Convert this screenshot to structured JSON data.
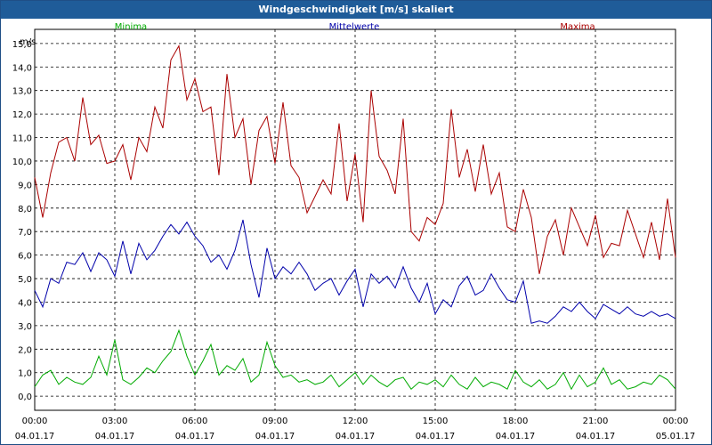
{
  "window": {
    "title": "Windgeschwindigkeit [m/s] skaliert"
  },
  "colors": {
    "minima": "#00aa00",
    "mittelwerte": "#0000aa",
    "maxima": "#aa0000",
    "titlebar": "#1f5c99"
  },
  "chart_data": {
    "type": "line",
    "title": "Windgeschwindigkeit [m/s] skaliert",
    "ylabel": "m/s",
    "xlabel": "",
    "ylim": [
      -0.6,
      15.6
    ],
    "xlim": [
      0,
      24
    ],
    "grid": true,
    "legend_placement": "top",
    "yticks": [
      "0,0",
      "1,0",
      "2,0",
      "3,0",
      "4,0",
      "5,0",
      "6,0",
      "7,0",
      "8,0",
      "9,0",
      "10,0",
      "11,0",
      "12,0",
      "13,0",
      "14,0",
      "15,0"
    ],
    "xticks": [
      {
        "time": "00:00",
        "date": "04.01.17"
      },
      {
        "time": "03:00",
        "date": "04.01.17"
      },
      {
        "time": "06:00",
        "date": "04.01.17"
      },
      {
        "time": "09:00",
        "date": "04.01.17"
      },
      {
        "time": "12:00",
        "date": "04.01.17"
      },
      {
        "time": "15:00",
        "date": "04.01.17"
      },
      {
        "time": "18:00",
        "date": "04.01.17"
      },
      {
        "time": "21:00",
        "date": "04.01.17"
      },
      {
        "time": "00:00",
        "date": "05.01.17"
      }
    ],
    "series": [
      {
        "name": "Minima",
        "x": [
          0,
          0.3,
          0.6,
          0.9,
          1.2,
          1.5,
          1.8,
          2.1,
          2.4,
          2.7,
          3.0,
          3.3,
          3.6,
          3.9,
          4.2,
          4.5,
          4.8,
          5.1,
          5.4,
          5.7,
          6.0,
          6.3,
          6.6,
          6.9,
          7.2,
          7.5,
          7.8,
          8.1,
          8.4,
          8.7,
          9.0,
          9.3,
          9.6,
          9.9,
          10.2,
          10.5,
          10.8,
          11.1,
          11.4,
          11.7,
          12.0,
          12.3,
          12.6,
          12.9,
          13.2,
          13.5,
          13.8,
          14.1,
          14.4,
          14.7,
          15.0,
          15.3,
          15.6,
          15.9,
          16.2,
          16.5,
          16.8,
          17.1,
          17.4,
          17.7,
          18.0,
          18.3,
          18.6,
          18.9,
          19.2,
          19.5,
          19.8,
          20.1,
          20.4,
          20.7,
          21.0,
          21.3,
          21.6,
          21.9,
          22.2,
          22.5,
          22.8,
          23.1,
          23.4,
          23.7,
          24.0
        ],
        "values": [
          0.4,
          0.9,
          1.1,
          0.5,
          0.8,
          0.6,
          0.5,
          0.8,
          1.7,
          0.9,
          2.4,
          0.7,
          0.5,
          0.8,
          1.2,
          1.0,
          1.5,
          1.9,
          2.8,
          1.7,
          0.9,
          1.5,
          2.2,
          0.9,
          1.3,
          1.1,
          1.6,
          0.6,
          0.9,
          2.3,
          1.3,
          0.8,
          0.9,
          0.6,
          0.7,
          0.5,
          0.6,
          0.9,
          0.4,
          0.7,
          1.0,
          0.5,
          0.9,
          0.6,
          0.4,
          0.7,
          0.8,
          0.3,
          0.6,
          0.5,
          0.7,
          0.4,
          0.9,
          0.5,
          0.3,
          0.8,
          0.4,
          0.6,
          0.5,
          0.3,
          1.1,
          0.6,
          0.4,
          0.7,
          0.3,
          0.5,
          1.0,
          0.3,
          0.9,
          0.4,
          0.6,
          1.2,
          0.5,
          0.7,
          0.3,
          0.4,
          0.6,
          0.5,
          0.9,
          0.7,
          0.3
        ]
      },
      {
        "name": "Mittelwerte",
        "x": [
          0,
          0.3,
          0.6,
          0.9,
          1.2,
          1.5,
          1.8,
          2.1,
          2.4,
          2.7,
          3.0,
          3.3,
          3.6,
          3.9,
          4.2,
          4.5,
          4.8,
          5.1,
          5.4,
          5.7,
          6.0,
          6.3,
          6.6,
          6.9,
          7.2,
          7.5,
          7.8,
          8.1,
          8.4,
          8.7,
          9.0,
          9.3,
          9.6,
          9.9,
          10.2,
          10.5,
          10.8,
          11.1,
          11.4,
          11.7,
          12.0,
          12.3,
          12.6,
          12.9,
          13.2,
          13.5,
          13.8,
          14.1,
          14.4,
          14.7,
          15.0,
          15.3,
          15.6,
          15.9,
          16.2,
          16.5,
          16.8,
          17.1,
          17.4,
          17.7,
          18.0,
          18.3,
          18.6,
          18.9,
          19.2,
          19.5,
          19.8,
          20.1,
          20.4,
          20.7,
          21.0,
          21.3,
          21.6,
          21.9,
          22.2,
          22.5,
          22.8,
          23.1,
          23.4,
          23.7,
          24.0
        ],
        "values": [
          4.5,
          3.8,
          5.0,
          4.8,
          5.7,
          5.6,
          6.1,
          5.3,
          6.1,
          5.8,
          5.1,
          6.6,
          5.2,
          6.5,
          5.8,
          6.2,
          6.8,
          7.3,
          6.9,
          7.4,
          6.8,
          6.4,
          5.7,
          6.0,
          5.4,
          6.2,
          7.5,
          5.6,
          4.2,
          6.3,
          5.0,
          5.5,
          5.2,
          5.7,
          5.2,
          4.5,
          4.8,
          5.0,
          4.3,
          4.9,
          5.4,
          3.8,
          5.2,
          4.8,
          5.1,
          4.6,
          5.5,
          4.6,
          4.0,
          4.8,
          3.5,
          4.1,
          3.8,
          4.7,
          5.1,
          4.3,
          4.5,
          5.2,
          4.6,
          4.1,
          4.0,
          4.9,
          3.1,
          3.2,
          3.1,
          3.4,
          3.8,
          3.6,
          4.0,
          3.6,
          3.3,
          3.9,
          3.7,
          3.5,
          3.8,
          3.5,
          3.4,
          3.6,
          3.4,
          3.5,
          3.3
        ]
      },
      {
        "name": "Maxima",
        "x": [
          0,
          0.3,
          0.6,
          0.9,
          1.2,
          1.5,
          1.8,
          2.1,
          2.4,
          2.7,
          3.0,
          3.3,
          3.6,
          3.9,
          4.2,
          4.5,
          4.8,
          5.1,
          5.4,
          5.7,
          6.0,
          6.3,
          6.6,
          6.9,
          7.2,
          7.5,
          7.8,
          8.1,
          8.4,
          8.7,
          9.0,
          9.3,
          9.6,
          9.9,
          10.2,
          10.5,
          10.8,
          11.1,
          11.4,
          11.7,
          12.0,
          12.3,
          12.6,
          12.9,
          13.2,
          13.5,
          13.8,
          14.1,
          14.4,
          14.7,
          15.0,
          15.3,
          15.6,
          15.9,
          16.2,
          16.5,
          16.8,
          17.1,
          17.4,
          17.7,
          18.0,
          18.3,
          18.6,
          18.9,
          19.2,
          19.5,
          19.8,
          20.1,
          20.4,
          20.7,
          21.0,
          21.3,
          21.6,
          21.9,
          22.2,
          22.5,
          22.8,
          23.1,
          23.4,
          23.7,
          24.0
        ],
        "values": [
          9.3,
          7.6,
          9.5,
          10.8,
          11.0,
          10.0,
          12.7,
          10.7,
          11.1,
          9.9,
          10.0,
          10.7,
          9.2,
          11.0,
          10.4,
          12.3,
          11.4,
          14.3,
          14.9,
          12.6,
          13.5,
          12.1,
          12.3,
          9.4,
          13.7,
          11.0,
          11.8,
          9.0,
          11.3,
          11.9,
          9.9,
          12.5,
          9.8,
          9.3,
          7.8,
          8.5,
          9.2,
          8.6,
          11.6,
          8.3,
          10.3,
          7.4,
          13.0,
          10.2,
          9.6,
          8.6,
          11.8,
          7.0,
          6.6,
          7.6,
          7.3,
          8.2,
          12.2,
          9.3,
          10.5,
          8.7,
          10.7,
          8.6,
          9.5,
          7.2,
          7.0,
          8.8,
          7.6,
          5.2,
          6.8,
          7.5,
          6.0,
          8.0,
          7.2,
          6.4,
          7.7,
          5.9,
          6.5,
          6.4,
          7.9,
          6.9,
          5.9,
          7.4,
          5.8,
          8.4,
          5.9
        ]
      }
    ]
  }
}
